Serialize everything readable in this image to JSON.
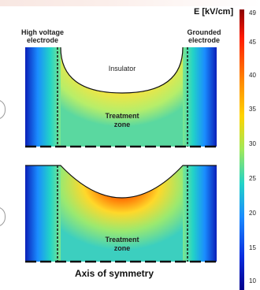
{
  "figure": {
    "colorbar": {
      "title": "E [kV/cm]",
      "ticks": [
        "49",
        "45",
        "40",
        "35",
        "30",
        "25",
        "20",
        "15",
        "10"
      ]
    },
    "top_panel": {
      "left_label": "High voltage\nelectrode",
      "right_label": "Grounded\nelectrode",
      "insulator_label": "Insulator",
      "zone_label": "Treatment\nzone"
    },
    "bottom_panel": {
      "zone_label": "Treatment\nzone"
    },
    "axis_label": "Axis of symmetry",
    "colors": {
      "cold": "#00008b",
      "mid": "#ffd400",
      "hot": "#ff1a00"
    }
  }
}
